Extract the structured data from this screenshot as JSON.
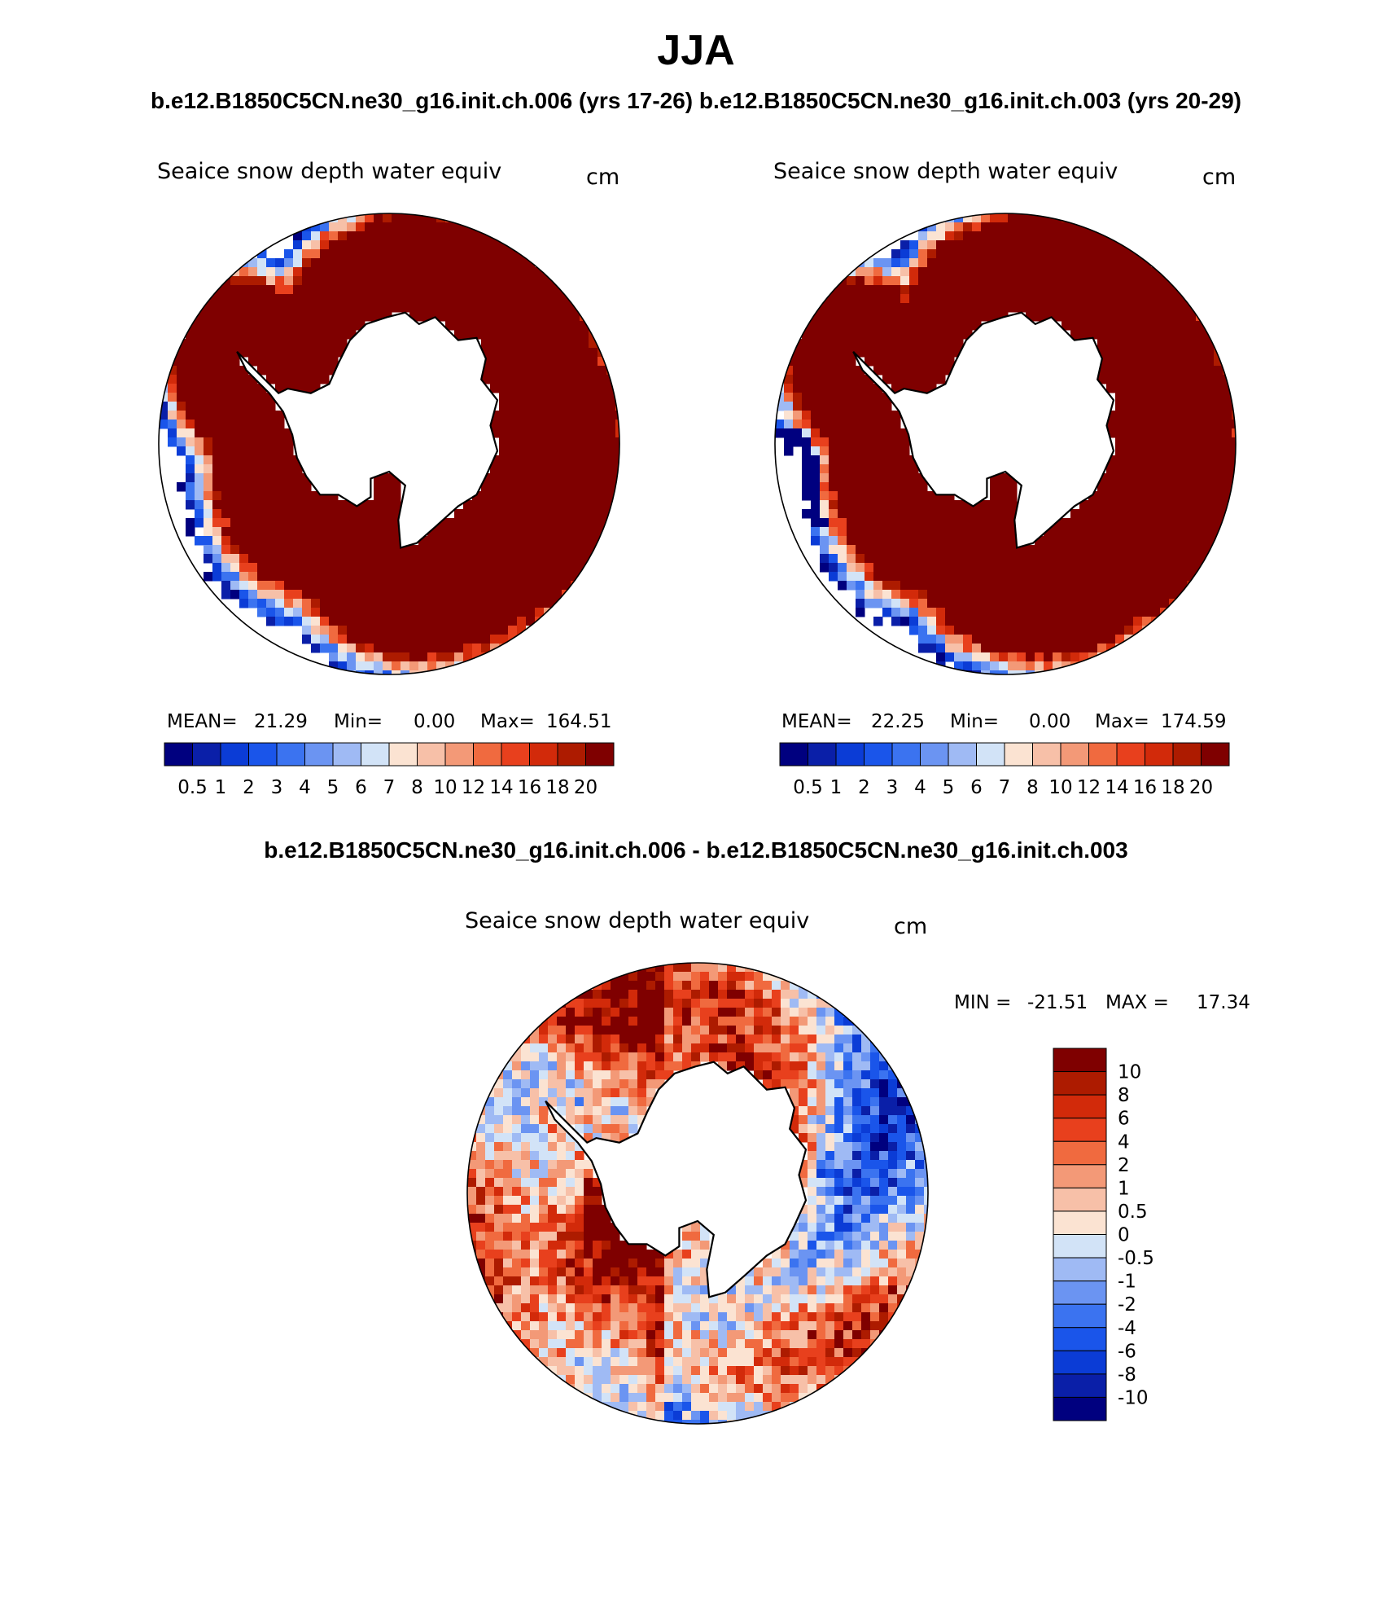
{
  "page": {
    "title": "JJA",
    "run_titles": "b.e12.B1850C5CN.ne30_g16.init.ch.006 (yrs 17-26)  b.e12.B1850C5CN.ne30_g16.init.ch.003 (yrs 20-29)",
    "diff_title": "b.e12.B1850C5CN.ne30_g16.init.ch.006 - b.e12.B1850C5CN.ne30_g16.init.ch.003"
  },
  "chart_data": [
    {
      "type": "heatmap",
      "id": "panel-ch006",
      "title": "Seaice snow depth water equiv",
      "units": "cm",
      "stats": {
        "mean_label": "MEAN=",
        "mean": "21.29",
        "min_label": "Min=",
        "min": "0.00",
        "max_label": "Max=",
        "max": "164.51"
      },
      "levels": [
        "0.5",
        "1",
        "2",
        "3",
        "4",
        "5",
        "6",
        "7",
        "8",
        "10",
        "12",
        "14",
        "16",
        "18",
        "20"
      ],
      "colors": [
        "#00007f",
        "#0a1fa8",
        "#0b3cd6",
        "#1a55ea",
        "#3b73f0",
        "#6b94f2",
        "#9fbaf4",
        "#d2e3f7",
        "#fbe3d2",
        "#f7c0a8",
        "#f39977",
        "#f06a3f",
        "#e8401d",
        "#d22a0a",
        "#ad1b00",
        "#7f0000"
      ]
    },
    {
      "type": "heatmap",
      "id": "panel-ch003",
      "title": "Seaice snow depth water equiv",
      "units": "cm",
      "stats": {
        "mean_label": "MEAN=",
        "mean": "22.25",
        "min_label": "Min=",
        "min": "0.00",
        "max_label": "Max=",
        "max": "174.59"
      },
      "levels": [
        "0.5",
        "1",
        "2",
        "3",
        "4",
        "5",
        "6",
        "7",
        "8",
        "10",
        "12",
        "14",
        "16",
        "18",
        "20"
      ],
      "colors": [
        "#00007f",
        "#0a1fa8",
        "#0b3cd6",
        "#1a55ea",
        "#3b73f0",
        "#6b94f2",
        "#9fbaf4",
        "#d2e3f7",
        "#fbe3d2",
        "#f7c0a8",
        "#f39977",
        "#f06a3f",
        "#e8401d",
        "#d22a0a",
        "#ad1b00",
        "#7f0000"
      ]
    },
    {
      "type": "heatmap",
      "id": "panel-diff",
      "title": "Seaice snow depth water equiv",
      "units": "cm",
      "stats": {
        "min_label": "MIN =",
        "min": "-21.51",
        "max_label": "MAX =",
        "max": "17.34"
      },
      "levels": [
        "10",
        "8",
        "6",
        "4",
        "2",
        "1",
        "0.5",
        "0",
        "-0.5",
        "-1",
        "-2",
        "-4",
        "-6",
        "-8",
        "-10"
      ],
      "colors": [
        "#7f0000",
        "#ad1b00",
        "#d22a0a",
        "#e8401d",
        "#f06a3f",
        "#f39977",
        "#f7c0a8",
        "#fbe3d2",
        "#d2e3f7",
        "#9fbaf4",
        "#6b94f2",
        "#3b73f0",
        "#1a55ea",
        "#0b3cd6",
        "#0a1fa8",
        "#00007f"
      ]
    }
  ]
}
